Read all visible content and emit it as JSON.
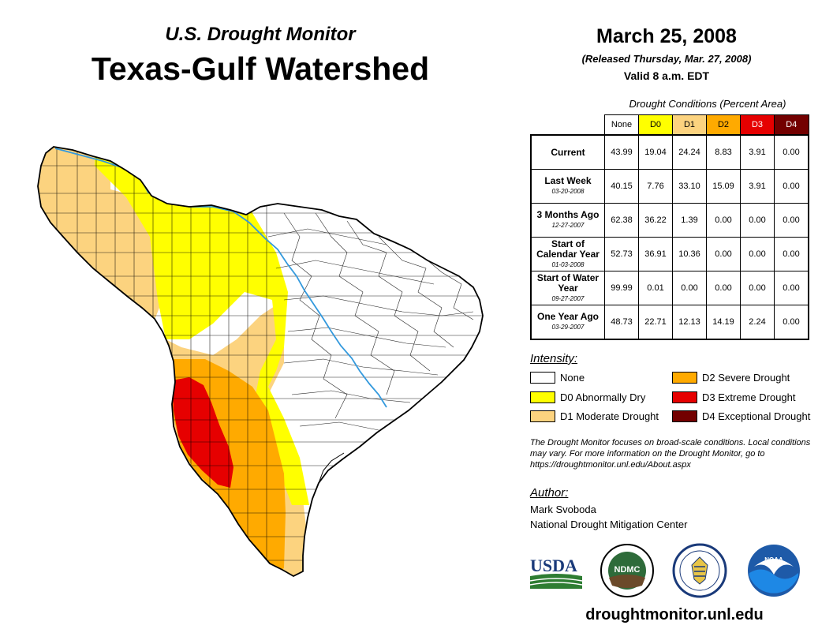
{
  "header": {
    "subtitle": "U.S. Drought Monitor",
    "title": "Texas-Gulf Watershed",
    "date": "March 25, 2008",
    "released": "(Released Thursday, Mar. 27, 2008)",
    "valid": "Valid 8 a.m. EDT"
  },
  "table": {
    "title": "Drought Conditions (Percent Area)",
    "columns": [
      "None",
      "D0",
      "D1",
      "D2",
      "D3",
      "D4"
    ],
    "column_colors": [
      "#ffffff",
      "#ffff00",
      "#fcd37f",
      "#ffaa00",
      "#e60000",
      "#730000"
    ],
    "rows": [
      {
        "label": "Current",
        "date": "",
        "values": [
          "43.99",
          "19.04",
          "24.24",
          "8.83",
          "3.91",
          "0.00"
        ]
      },
      {
        "label": "Last Week",
        "date": "03-20-2008",
        "values": [
          "40.15",
          "7.76",
          "33.10",
          "15.09",
          "3.91",
          "0.00"
        ]
      },
      {
        "label": "3 Months Ago",
        "date": "12-27-2007",
        "values": [
          "62.38",
          "36.22",
          "1.39",
          "0.00",
          "0.00",
          "0.00"
        ]
      },
      {
        "label": "Start of Calendar Year",
        "date": "01-03-2008",
        "values": [
          "52.73",
          "36.91",
          "10.36",
          "0.00",
          "0.00",
          "0.00"
        ]
      },
      {
        "label": "Start of Water Year",
        "date": "09-27-2007",
        "values": [
          "99.99",
          "0.01",
          "0.00",
          "0.00",
          "0.00",
          "0.00"
        ]
      },
      {
        "label": "One Year Ago",
        "date": "03-29-2007",
        "values": [
          "48.73",
          "22.71",
          "12.13",
          "14.19",
          "2.24",
          "0.00"
        ]
      }
    ]
  },
  "legend": {
    "title": "Intensity:",
    "items": [
      {
        "label": "None",
        "color": "#ffffff"
      },
      {
        "label": "D0 Abnormally Dry",
        "color": "#ffff00"
      },
      {
        "label": "D1 Moderate Drought",
        "color": "#fcd37f"
      },
      {
        "label": "D2 Severe Drought",
        "color": "#ffaa00"
      },
      {
        "label": "D3 Extreme Drought",
        "color": "#e60000"
      },
      {
        "label": "D4 Exceptional Drought",
        "color": "#730000"
      }
    ]
  },
  "note": "The Drought Monitor focuses on broad-scale conditions. Local conditions may vary. For more information on the Drought Monitor, go to https://droughtmonitor.unl.edu/About.aspx",
  "author": {
    "title": "Author:",
    "name": "Mark Svoboda",
    "org": "National Drought Mitigation Center"
  },
  "logos": {
    "usda": "USDA",
    "ndmc": "NDMC",
    "noaa": "NOAA"
  },
  "url": "droughtmonitor.unl.edu",
  "colors": {
    "river": "#3399dd",
    "border": "#000000"
  }
}
